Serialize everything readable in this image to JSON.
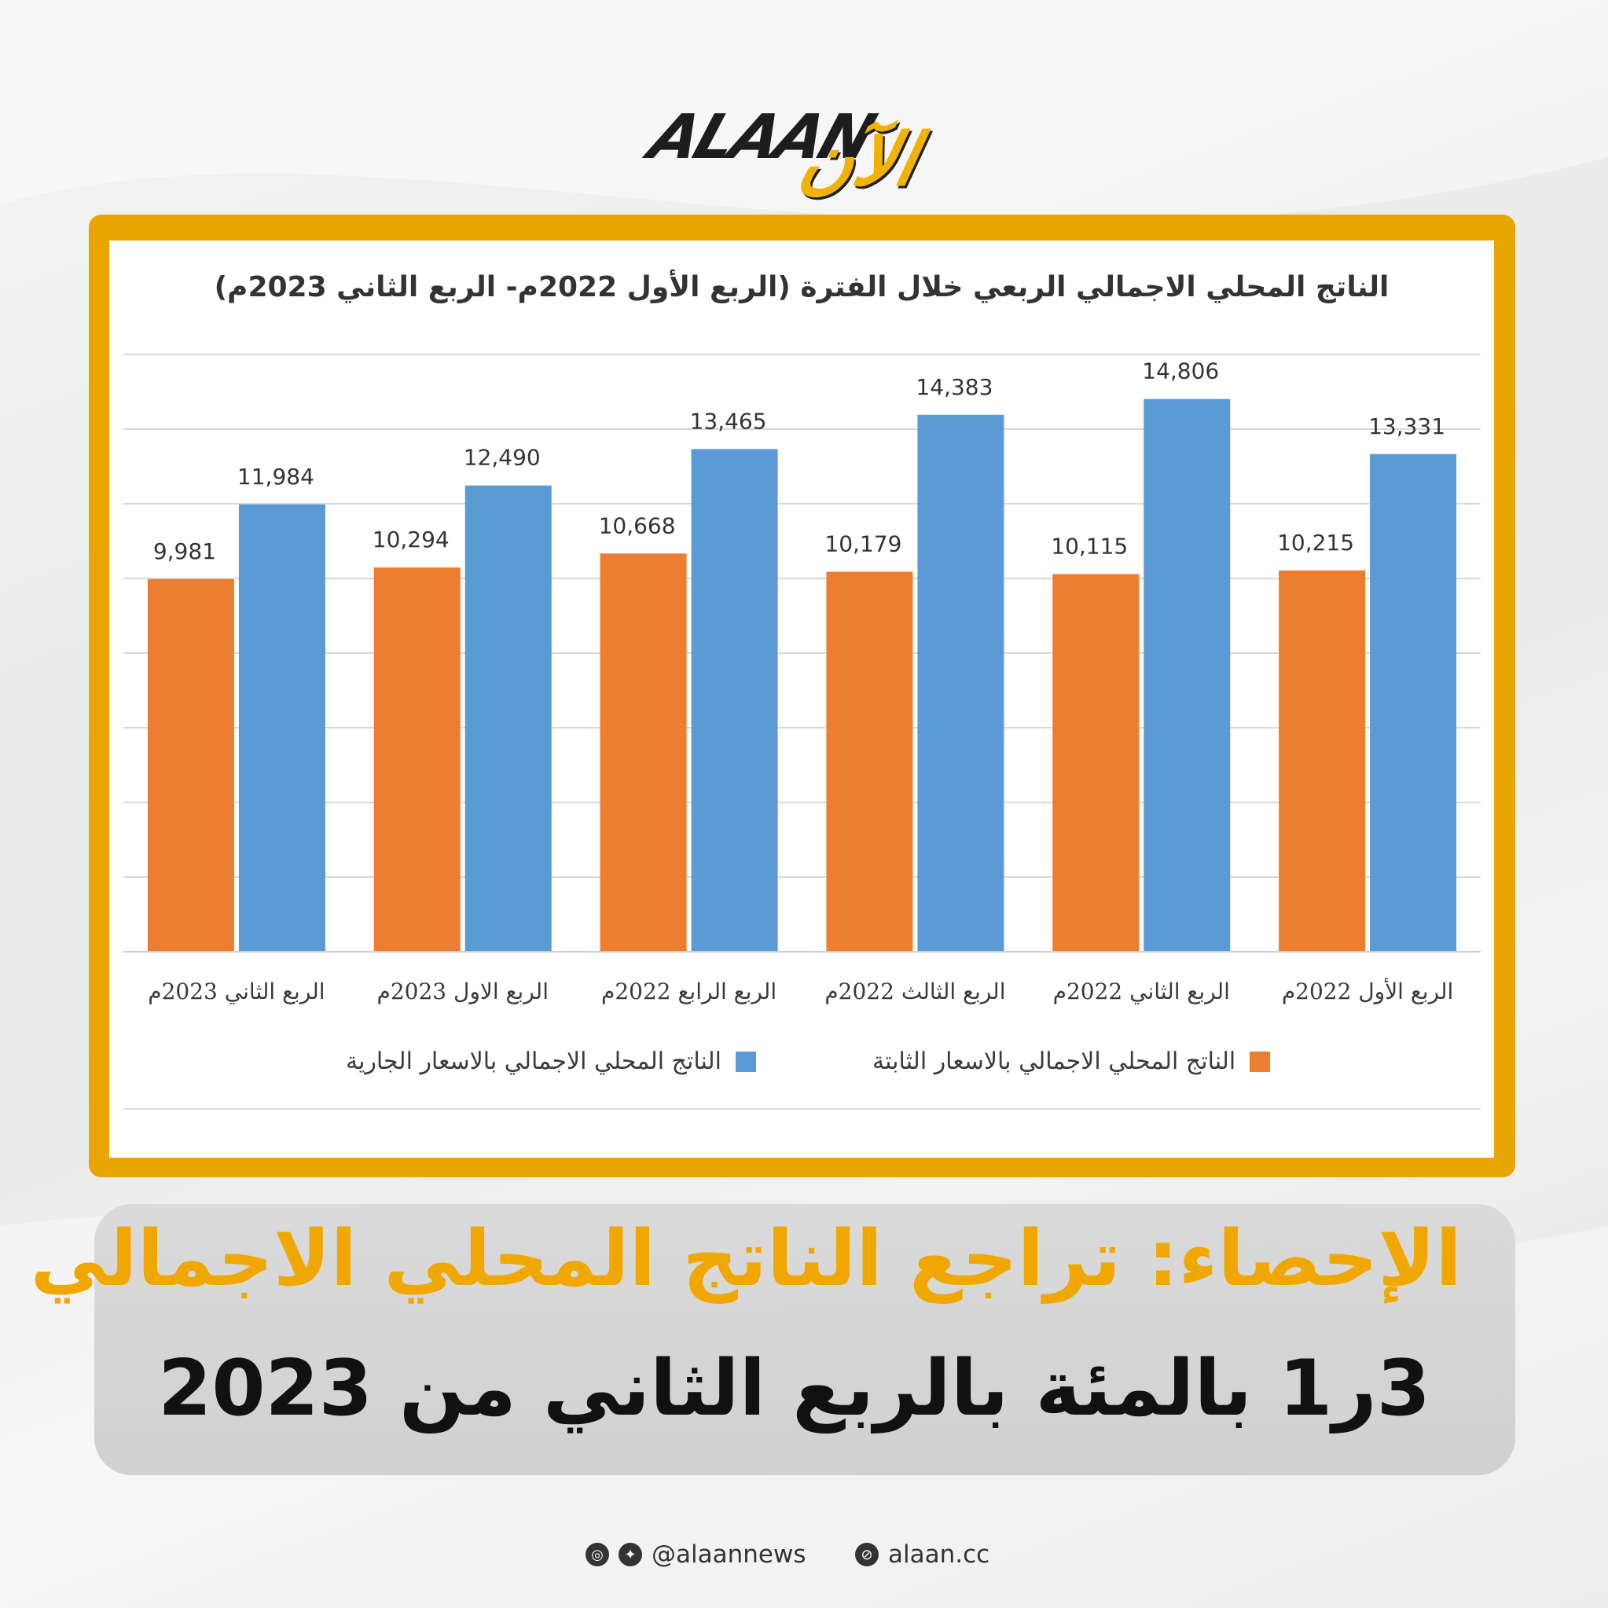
{
  "logo": {
    "latin": "ALAAN",
    "arabic": "الآن"
  },
  "chart_data": {
    "type": "bar",
    "title": "الناتج المحلي الاجمالي الربعي خلال الفترة (الربع الأول 2022م- الربع الثاني 2023م)",
    "categories": [
      "الربع الأول 2022م",
      "الربع الثاني 2022م",
      "الربع الثالث 2022م",
      "الربع الرابع 2022م",
      "الربع الاول 2023م",
      "الربع الثاني 2023م"
    ],
    "x_direction": "right-to-left",
    "series": [
      {
        "name": "الناتج المحلي الاجمالي بالاسعار الثابتة",
        "color": "#ed7d31",
        "values": [
          10215,
          10115,
          10179,
          10668,
          10294,
          9981
        ],
        "labels": [
          "10,215",
          "10,115",
          "10,179",
          "10,668",
          "10,294",
          "9,981"
        ]
      },
      {
        "name": "الناتج المحلي الاجمالي بالاسعار الجارية",
        "color": "#5b9bd5",
        "values": [
          13331,
          14806,
          14383,
          13465,
          12490,
          11984
        ],
        "labels": [
          "13,331",
          "14,806",
          "14,383",
          "13,465",
          "12,490",
          "11,984"
        ]
      }
    ],
    "ylim": [
      0,
      16000
    ],
    "grid": true,
    "legend_position": "bottom"
  },
  "headline": {
    "line1": "الإحصاء: تراجع الناتج المحلي الاجمالي",
    "line2": "3ر1 بالمئة بالربع الثاني من 2023"
  },
  "footer": {
    "handle": "@alaannews",
    "website": "alaan.cc",
    "icons": [
      "instagram-icon",
      "twitter-icon",
      "link-icon"
    ]
  }
}
